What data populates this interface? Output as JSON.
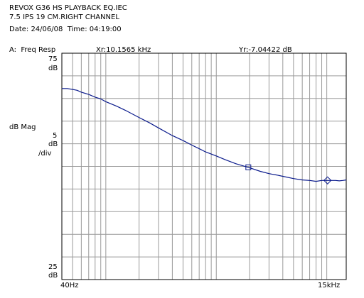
{
  "header": {
    "line1": "REVOX G36 HS PLAYBACK EQ.IEC",
    "line2": "7.5 IPS 19 CM.RIGHT CHANNEL",
    "line3": "Date: 24/06/08  Time: 04:19:00"
  },
  "trace_label": "A:  Freq Resp",
  "markers": {
    "x_readout": "Xr:10.1565 kHz",
    "y_readout": "Yr:-7.04422 dB"
  },
  "y_axis": {
    "top_value": "75",
    "top_unit": "dB",
    "mid_label_1": "dB Mag",
    "mid_value": "5",
    "mid_unit": "dB",
    "mid_label_2": "/div",
    "bottom_value": "25",
    "bottom_unit": "dB"
  },
  "x_axis": {
    "start_label": "40Hz",
    "end_label": "15kHz"
  },
  "colors": {
    "trace": "#0a1a8c",
    "grid": "#9a9a9a",
    "frame": "#000000"
  },
  "chart_data": {
    "type": "line",
    "x_scale": "log",
    "xlim": [
      40,
      15000
    ],
    "ylim": [
      25,
      75
    ],
    "y_divisions": 10,
    "x_unit": "Hz",
    "y_unit": "dB",
    "series": [
      {
        "x": [
          40,
          45,
          50,
          55,
          60,
          70,
          80,
          90,
          100,
          125,
          150,
          200,
          250,
          300,
          400,
          500,
          600,
          700,
          800,
          1000,
          1200,
          1500,
          2000,
          2500,
          3000,
          3500,
          4000,
          5000,
          6000,
          7000,
          8000,
          9000,
          10000,
          11000,
          12000,
          13000,
          14000,
          15000
        ],
        "y": [
          67.2,
          67.2,
          67.0,
          66.8,
          66.4,
          65.9,
          65.3,
          64.9,
          64.3,
          63.3,
          62.4,
          60.8,
          59.6,
          58.5,
          56.8,
          55.7,
          54.7,
          53.9,
          53.2,
          52.3,
          51.5,
          50.6,
          49.7,
          48.9,
          48.4,
          48.1,
          47.8,
          47.3,
          47.0,
          46.9,
          46.7,
          46.9,
          46.9,
          46.9,
          46.9,
          46.8,
          46.9,
          47.0
        ]
      }
    ],
    "markers": [
      {
        "name": "reference",
        "shape": "square",
        "x": 1950,
        "y": 49.8
      },
      {
        "name": "active",
        "shape": "diamond",
        "x": 10156.5,
        "y": 46.9
      }
    ]
  }
}
